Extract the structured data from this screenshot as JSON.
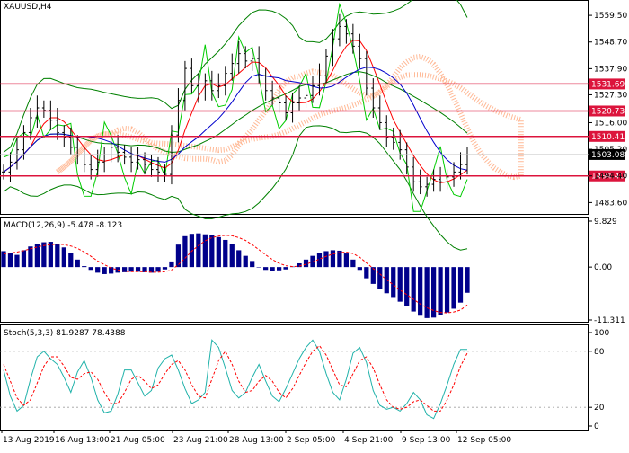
{
  "chart_data": [
    {
      "type": "line",
      "panel": "price",
      "title": "XAUUSD,H4",
      "ylim": [
        1479.0,
        1565.0
      ],
      "price_axis": [
        "1559.50",
        "1548.70",
        "1537.90",
        "1527.30",
        "1516.00",
        "1505.20",
        "1494.40",
        "1483.60"
      ],
      "levels": [
        {
          "label": "1531.69",
          "value": 1531.69,
          "color": "#dc143c"
        },
        {
          "label": "1520.73",
          "value": 1520.73,
          "color": "#dc143c"
        },
        {
          "label": "1510.41",
          "value": 1510.41,
          "color": "#dc143c"
        },
        {
          "label": "1494.40",
          "value": 1494.4,
          "color": "#dc143c"
        }
      ],
      "current_price": {
        "label": "1503.08",
        "value": 1503.08
      },
      "close_series": [
        1496,
        1500,
        1505,
        1512,
        1518,
        1522,
        1521,
        1517,
        1512,
        1510,
        1506,
        1503,
        1499,
        1497,
        1500,
        1503,
        1506,
        1504,
        1502,
        1500,
        1501,
        1499,
        1497,
        1496,
        1495,
        1511,
        1525,
        1538,
        1531,
        1528,
        1533,
        1529,
        1531,
        1536,
        1540,
        1544,
        1541,
        1542,
        1535,
        1529,
        1526,
        1524,
        1520,
        1524,
        1526,
        1527,
        1531,
        1535,
        1543,
        1550,
        1555,
        1552,
        1547,
        1542,
        1530,
        1522,
        1516,
        1510,
        1508,
        1505,
        1498,
        1492,
        1490,
        1491,
        1493,
        1492,
        1494,
        1496,
        1499,
        1503
      ],
      "colors": {
        "price": "#000000",
        "bollinger": "#008000",
        "ma_fast": "#ff0000",
        "ma_slow": "#0000cd",
        "envelope": "#00cc00",
        "cloud": "#ff7f3f"
      }
    },
    {
      "type": "bar",
      "panel": "macd",
      "title": "MACD(12,26,9) -5.478 -8.123",
      "ylim": [
        -11.311,
        9.829
      ],
      "axis_labels": [
        "9.829",
        "0.00",
        "-11.311"
      ],
      "histogram": [
        3.4,
        3.0,
        2.6,
        3.6,
        4.4,
        5.0,
        5.3,
        5.4,
        5.0,
        4.2,
        3.0,
        1.6,
        0.2,
        -0.6,
        -1.2,
        -1.5,
        -1.4,
        -1.2,
        -1.1,
        -1.0,
        -1.0,
        -1.1,
        -1.2,
        -1.0,
        -0.5,
        1.2,
        4.8,
        6.6,
        7.1,
        7.2,
        7.0,
        6.8,
        6.4,
        5.8,
        4.9,
        3.6,
        2.4,
        1.3,
        0.0,
        -0.6,
        -0.8,
        -0.7,
        -0.5,
        0.1,
        0.8,
        1.6,
        2.4,
        3.0,
        3.4,
        3.6,
        3.5,
        2.9,
        1.6,
        -0.6,
        -2.4,
        -3.6,
        -4.6,
        -5.6,
        -6.4,
        -7.4,
        -8.4,
        -9.5,
        -10.4,
        -10.9,
        -10.8,
        -10.3,
        -9.7,
        -8.9,
        -7.6,
        -5.5
      ],
      "signal": [
        2.8,
        3.0,
        3.2,
        3.5,
        3.9,
        4.3,
        4.6,
        4.8,
        4.9,
        4.8,
        4.5,
        4.0,
        3.2,
        2.3,
        1.3,
        0.5,
        -0.2,
        -0.6,
        -0.9,
        -1.0,
        -1.0,
        -1.0,
        -1.1,
        -1.1,
        -1.0,
        -0.6,
        0.5,
        1.9,
        3.4,
        4.6,
        5.6,
        6.3,
        6.6,
        6.8,
        6.7,
        6.3,
        5.7,
        4.8,
        3.7,
        2.6,
        1.6,
        0.8,
        0.3,
        0.1,
        0.2,
        0.6,
        1.1,
        1.7,
        2.3,
        2.8,
        3.1,
        3.2,
        2.9,
        2.1,
        0.9,
        -0.3,
        -1.5,
        -2.7,
        -3.8,
        -4.9,
        -5.9,
        -6.9,
        -7.9,
        -8.7,
        -9.3,
        -9.7,
        -9.8,
        -9.6,
        -9.2,
        -8.1
      ],
      "colors": {
        "bar": "#00008b",
        "signal": "#ff0000"
      }
    },
    {
      "type": "line",
      "panel": "stochastic",
      "title": "Stoch(5,3,3) 81.9287 78.4388",
      "ylim": [
        0,
        100
      ],
      "axis_labels": [
        "100",
        "80",
        "20",
        "0"
      ],
      "main": [
        60,
        32,
        16,
        22,
        50,
        74,
        80,
        72,
        66,
        52,
        36,
        58,
        70,
        52,
        28,
        14,
        16,
        34,
        60,
        60,
        46,
        32,
        38,
        62,
        72,
        76,
        60,
        40,
        24,
        28,
        36,
        92,
        84,
        62,
        38,
        30,
        36,
        52,
        66,
        48,
        32,
        26,
        40,
        56,
        72,
        84,
        92,
        80,
        56,
        36,
        28,
        50,
        78,
        84,
        68,
        38,
        22,
        18,
        20,
        16,
        24,
        36,
        28,
        12,
        8,
        24,
        44,
        66,
        82,
        82
      ],
      "signal": [
        66,
        48,
        30,
        22,
        28,
        46,
        64,
        74,
        74,
        64,
        52,
        50,
        56,
        58,
        50,
        36,
        24,
        24,
        36,
        50,
        54,
        48,
        40,
        44,
        56,
        66,
        70,
        60,
        44,
        32,
        30,
        50,
        70,
        80,
        66,
        48,
        36,
        38,
        48,
        54,
        48,
        36,
        30,
        40,
        54,
        68,
        80,
        86,
        76,
        60,
        44,
        42,
        56,
        70,
        74,
        62,
        44,
        28,
        20,
        18,
        20,
        26,
        28,
        22,
        16,
        16,
        28,
        44,
        64,
        78
      ],
      "colors": {
        "main": "#20b2aa",
        "signal": "#ff0000"
      }
    }
  ],
  "x_axis": [
    "13 Aug 2019",
    "16 Aug 13:00",
    "21 Aug 05:00",
    "23 Aug 21:00",
    "28 Aug 13:00",
    "2 Sep 05:00",
    "4 Sep 21:00",
    "9 Sep 13:00",
    "12 Sep 05:00"
  ]
}
